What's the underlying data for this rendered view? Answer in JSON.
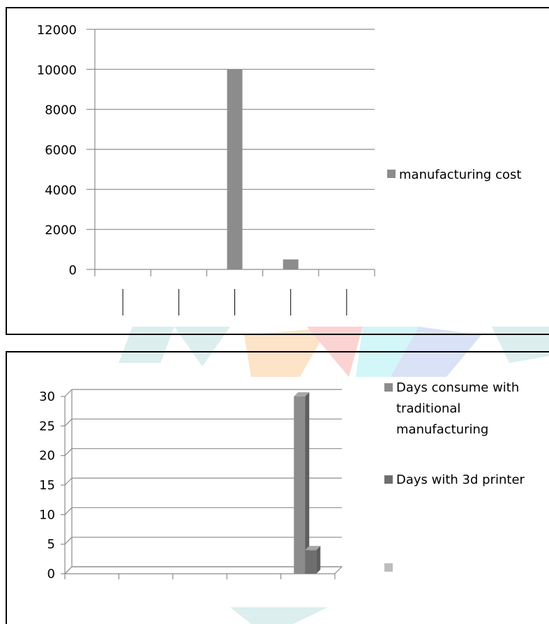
{
  "colors": {
    "bar_gray": "#8c8c8c",
    "bar_dark": "#6e6e6e",
    "bar_light": "#bdbdbd",
    "grid": "#8c8c8c",
    "watermark_teal": "#dceeee",
    "watermark_orange": "#fde3c8",
    "watermark_pink": "#fbd3d3",
    "watermark_cyan": "#d3f6f8",
    "watermark_blue": "#d9e2f6"
  },
  "chart_data": [
    {
      "type": "bar",
      "categories": [
        "",
        "",
        "",
        "",
        ""
      ],
      "series": [
        {
          "name": "manufacturing cost",
          "values": [
            0,
            0,
            10000,
            500,
            0
          ]
        }
      ],
      "ylim": [
        0,
        12000
      ],
      "yticks": [
        "0",
        "2000",
        "4000",
        "6000",
        "8000",
        "10000",
        "12000"
      ],
      "grid": true,
      "legend_position": "right"
    },
    {
      "type": "bar",
      "categories": [
        "",
        "",
        "",
        "",
        ""
      ],
      "series": [
        {
          "name": "Days consume with traditional manufacturing",
          "values": [
            0,
            0,
            0,
            0,
            30
          ]
        },
        {
          "name": "Days with 3d printer",
          "values": [
            0,
            0,
            0,
            0,
            4
          ]
        },
        {
          "name": "",
          "values": [
            0,
            0,
            0,
            0,
            0
          ]
        }
      ],
      "ylim": [
        0,
        30
      ],
      "yticks": [
        "0",
        "5",
        "10",
        "15",
        "20",
        "25",
        "30"
      ],
      "grid": true,
      "legend_position": "right",
      "legend_lines": [
        [
          "Days consume with",
          "traditional",
          "manufacturing"
        ],
        [
          "Days with 3d printer"
        ]
      ]
    }
  ]
}
